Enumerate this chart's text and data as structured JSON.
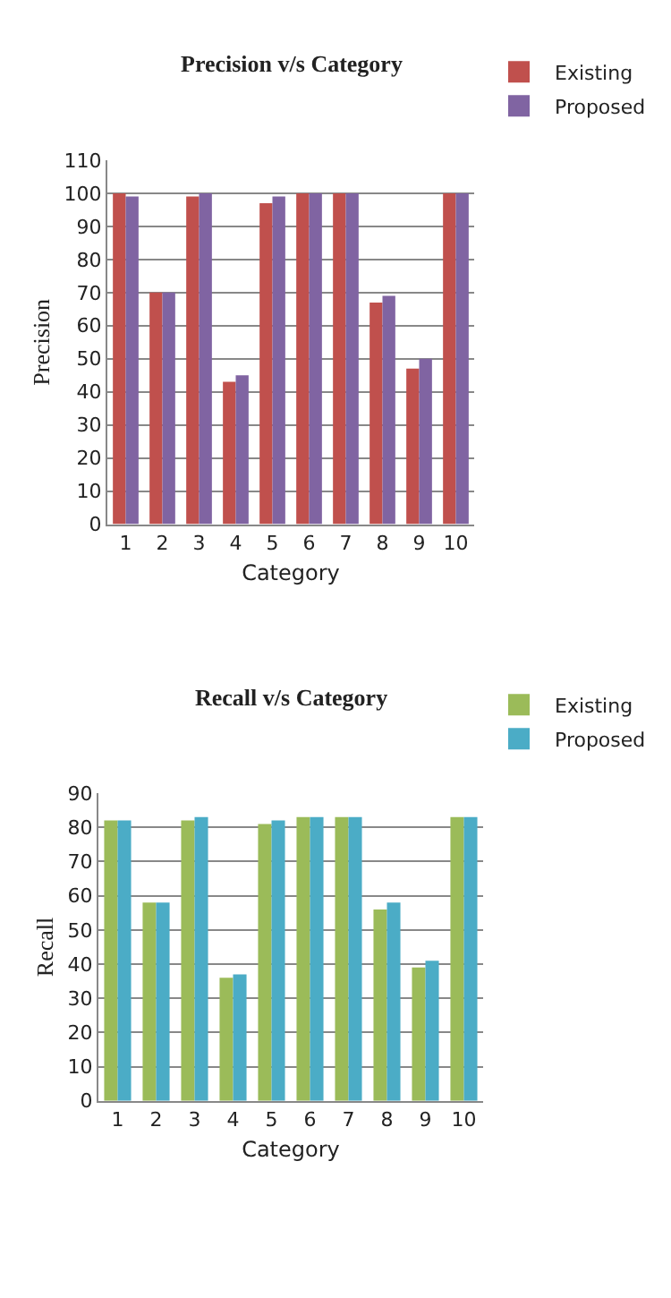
{
  "chart_data": [
    {
      "type": "bar",
      "title": "Precision v/s Category",
      "xlabel": "Category",
      "ylabel": "Precision",
      "categories": [
        "1",
        "2",
        "3",
        "4",
        "5",
        "6",
        "7",
        "8",
        "9",
        "10"
      ],
      "series": [
        {
          "name": "Existing",
          "color": "#c0504d",
          "values": [
            100,
            70,
            99,
            43,
            97,
            100,
            100,
            67,
            47,
            100
          ]
        },
        {
          "name": "Proposed",
          "color": "#8064a2",
          "values": [
            99,
            70,
            100,
            45,
            99,
            100,
            100,
            69,
            50,
            100
          ]
        }
      ],
      "ylim": [
        0,
        110
      ],
      "yticks": [
        0,
        10,
        20,
        30,
        40,
        50,
        60,
        70,
        80,
        90,
        100,
        110
      ],
      "grid": "y",
      "legend": "top right"
    },
    {
      "type": "bar",
      "title": "Recall v/s Category",
      "xlabel": "Category",
      "ylabel": "Recall",
      "categories": [
        "1",
        "2",
        "3",
        "4",
        "5",
        "6",
        "7",
        "8",
        "9",
        "10"
      ],
      "series": [
        {
          "name": "Existing",
          "color": "#9bbb59",
          "values": [
            82,
            58,
            82,
            36,
            81,
            83,
            83,
            56,
            39,
            83
          ]
        },
        {
          "name": "Proposed",
          "color": "#4bacc6",
          "values": [
            82,
            58,
            83,
            37,
            82,
            83,
            83,
            58,
            41,
            83
          ]
        }
      ],
      "ylim": [
        0,
        90
      ],
      "yticks": [
        0,
        10,
        20,
        30,
        40,
        50,
        60,
        70,
        80,
        90
      ],
      "grid": "y",
      "legend": "top right"
    }
  ]
}
